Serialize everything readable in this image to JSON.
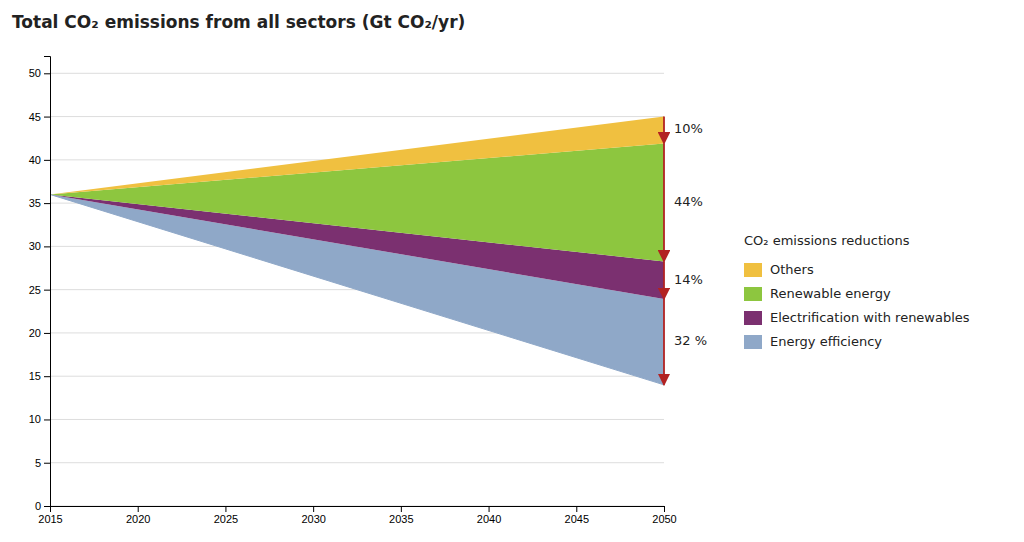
{
  "chart_data": {
    "type": "area",
    "stacked": true,
    "title": "Total CO₂ emissions from all sectors (Gt CO₂/yr)",
    "x": [
      2015,
      2050
    ],
    "base": [
      36.0,
      14.0
    ],
    "series": [
      {
        "name": "Energy efficiency",
        "color": "#8FA8C8",
        "values": [
          0,
          9.92
        ]
      },
      {
        "name": "Electrification with renewables",
        "color": "#7B3070",
        "values": [
          0,
          4.34
        ]
      },
      {
        "name": "Renewable energy",
        "color": "#8DC63F",
        "values": [
          0,
          13.64
        ]
      },
      {
        "name": "Others",
        "color": "#F0C040",
        "values": [
          0,
          3.1
        ]
      }
    ],
    "annotations": [
      {
        "text": "32 %",
        "color": "#B22222"
      },
      {
        "text": "14%",
        "color": "#B22222"
      },
      {
        "text": "44%",
        "color": "#B22222"
      },
      {
        "text": "10%",
        "color": "#B22222"
      }
    ],
    "legend_title": "CO₂ emissions reductions",
    "legend": "right",
    "xlim": [
      2015,
      2050
    ],
    "ylim": [
      0,
      52
    ],
    "xticks": [
      2015,
      2020,
      2025,
      2030,
      2035,
      2040,
      2045,
      2050
    ],
    "yticks": [
      0,
      5,
      10,
      15,
      20,
      25,
      30,
      35,
      40,
      45,
      50
    ],
    "grid": true
  }
}
